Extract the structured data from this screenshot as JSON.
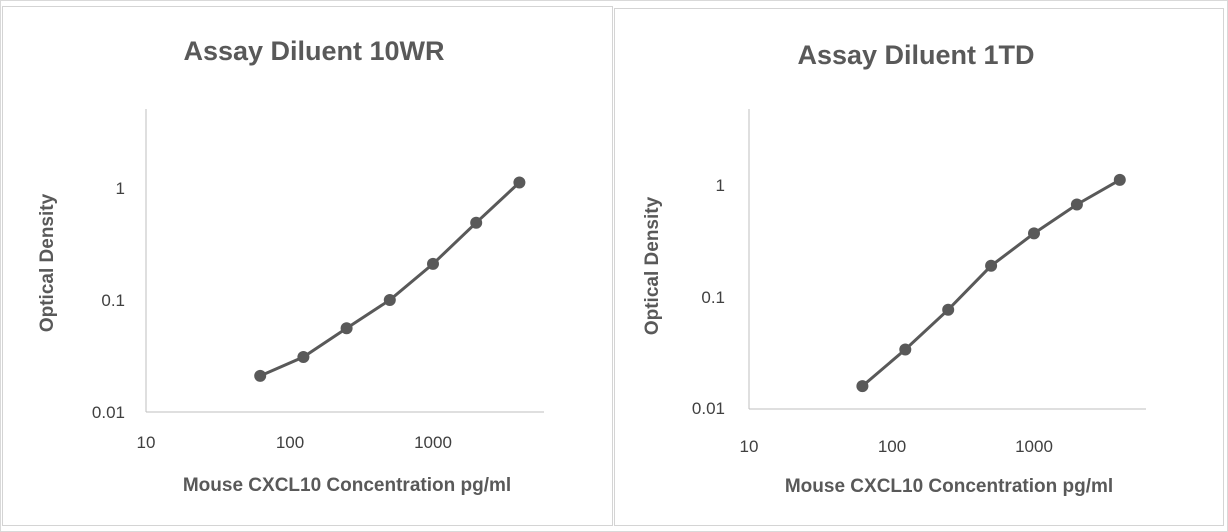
{
  "colors": {
    "series": "#595959",
    "axis": "#bfbfbf",
    "text": "#595959"
  },
  "chart_data": [
    {
      "type": "line",
      "title": "Assay Diluent 10WR",
      "xlabel": "Mouse CXCL10 Concentration pg/ml",
      "ylabel": "Optical Density",
      "xscale": "log",
      "yscale": "log",
      "xlim": [
        10,
        5500
      ],
      "ylim": [
        0.01,
        5
      ],
      "xticks": [
        "10",
        "100",
        "1000"
      ],
      "yticks": [
        "0.01",
        "0.1",
        "1"
      ],
      "grid": false,
      "series": [
        {
          "x": [
            62.5,
            125,
            250,
            500,
            1000,
            2000,
            4000
          ],
          "y": [
            0.021,
            0.031,
            0.056,
            0.1,
            0.21,
            0.49,
            1.12
          ]
        }
      ]
    },
    {
      "type": "line",
      "title": "Assay Diluent 1TD",
      "xlabel": "Mouse CXCL10 Concentration pg/ml",
      "ylabel": "Optical Density",
      "xscale": "log",
      "yscale": "log",
      "xlim": [
        10,
        5500
      ],
      "ylim": [
        0.01,
        5
      ],
      "xticks": [
        "10",
        "100",
        "1000"
      ],
      "yticks": [
        "0.01",
        "0.1",
        "1"
      ],
      "grid": false,
      "series": [
        {
          "x": [
            62.5,
            125,
            250,
            500,
            1000,
            2000,
            4000
          ],
          "y": [
            0.016,
            0.034,
            0.077,
            0.19,
            0.37,
            0.67,
            1.11
          ]
        }
      ]
    }
  ]
}
